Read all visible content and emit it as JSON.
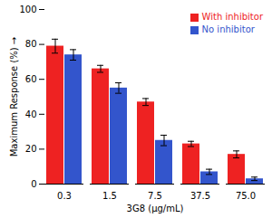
{
  "chart_data": {
    "type": "bar",
    "xlabel": "3G8 (μg/mL)",
    "ylabel": "Maximum Response (%)",
    "categories": [
      "0.3",
      "1.5",
      "7.5",
      "37.5",
      "75.0"
    ],
    "series": [
      {
        "name": "With inhibitor",
        "color": "#EE2222",
        "values": [
          79,
          66,
          47,
          23,
          17
        ],
        "errors": [
          4,
          2,
          2,
          1.5,
          2
        ]
      },
      {
        "name": "No inhibitor",
        "color": "#3355CC",
        "values": [
          74,
          55,
          25,
          7,
          3
        ],
        "errors": [
          3,
          3,
          3,
          1.5,
          1
        ]
      }
    ],
    "ylim": [
      0,
      100
    ],
    "yticks": [
      0,
      20,
      40,
      60,
      80,
      100
    ],
    "legend": "upper right"
  }
}
